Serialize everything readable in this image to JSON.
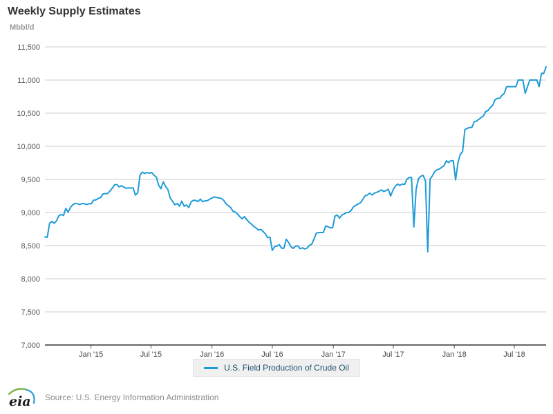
{
  "header": {
    "title": "Weekly Supply Estimates",
    "unit": "Mbbl/d"
  },
  "legend": {
    "label": "U.S. Field Production of Crude Oil"
  },
  "footer": {
    "logo_text": "eia",
    "source": "Source: U.S. Energy Information Administration"
  },
  "chart_data": {
    "type": "line",
    "title": "Weekly Supply Estimates",
    "ylabel": "Mbbl/d",
    "xlabel": "",
    "grid": true,
    "legend_position": "bottom",
    "series_name": "U.S. Field Production of Crude Oil",
    "frequency": "weekly",
    "x_start": "2014-08-15",
    "x_end": "2018-10-05",
    "ylim": [
      7000,
      11500
    ],
    "y_tick_step": 500,
    "y_ticks": [
      {
        "label": "11,500",
        "value": 11500
      },
      {
        "label": "11,000",
        "value": 11000
      },
      {
        "label": "10,500",
        "value": 10500
      },
      {
        "label": "10,000",
        "value": 10000
      },
      {
        "label": "9,500",
        "value": 9500
      },
      {
        "label": "9,000",
        "value": 9000
      },
      {
        "label": "8,500",
        "value": 8500
      },
      {
        "label": "8,000",
        "value": 8000
      },
      {
        "label": "7,500",
        "value": 7500
      },
      {
        "label": "7,000",
        "value": 7000
      }
    ],
    "x_ticks": [
      {
        "label": "Jan '15",
        "week": 19.86
      },
      {
        "label": "Jul '15",
        "week": 45.71
      },
      {
        "label": "Jan '16",
        "week": 72.0
      },
      {
        "label": "Jul '16",
        "week": 98.0
      },
      {
        "label": "Jan '17",
        "week": 124.29
      },
      {
        "label": "Jul '17",
        "week": 150.14
      },
      {
        "label": "Jan '18",
        "week": 176.43
      },
      {
        "label": "Jul '18",
        "week": 202.29
      }
    ],
    "colors": {
      "line": "#1f9bd8",
      "grid": "#cccccc",
      "axis": "#333333",
      "y_tick_label": "#555555",
      "x_tick_label": "#444444",
      "legend_text": "#1d4f6e",
      "logo_green": "#7ab648",
      "logo_blue": "#3aa5d6"
    },
    "values": [
      8631,
      8625,
      8838,
      8867,
      8837,
      8875,
      8951,
      8970,
      8956,
      9063,
      9004,
      9077,
      9118,
      9137,
      9132,
      9121,
      9135,
      9132,
      9121,
      9132,
      9132,
      9186,
      9192,
      9213,
      9226,
      9280,
      9285,
      9286,
      9324,
      9366,
      9419,
      9422,
      9386,
      9404,
      9384,
      9366,
      9373,
      9369,
      9374,
      9262,
      9300,
      9566,
      9610,
      9590,
      9604,
      9595,
      9604,
      9562,
      9538,
      9413,
      9358,
      9465,
      9395,
      9348,
      9218,
      9170,
      9117,
      9136,
      9096,
      9172,
      9096,
      9112,
      9075,
      9160,
      9185,
      9182,
      9165,
      9202,
      9164,
      9176,
      9179,
      9202,
      9219,
      9235,
      9226,
      9221,
      9214,
      9186,
      9135,
      9102,
      9077,
      9022,
      9008,
      8977,
      8938,
      8904,
      8939,
      8892,
      8853,
      8825,
      8791,
      8767,
      8735,
      8745,
      8716,
      8677,
      8622,
      8627,
      8428,
      8485,
      8494,
      8515,
      8460,
      8460,
      8597,
      8548,
      8488,
      8458,
      8493,
      8497,
      8453,
      8467,
      8450,
      8464,
      8504,
      8522,
      8604,
      8690,
      8697,
      8699,
      8697,
      8796,
      8786,
      8770,
      8770,
      8946,
      8961,
      8915,
      8961,
      8978,
      9000,
      9001,
      9032,
      9088,
      9109,
      9129,
      9147,
      9199,
      9252,
      9265,
      9293,
      9265,
      9293,
      9305,
      9320,
      9342,
      9318,
      9330,
      9350,
      9250,
      9338,
      9397,
      9429,
      9410,
      9430,
      9423,
      9502,
      9528,
      9530,
      8781,
      9353,
      9510,
      9547,
      9561,
      9480,
      8406,
      9507,
      9553,
      9620,
      9645,
      9658,
      9682,
      9707,
      9780,
      9754,
      9782,
      9782,
      9492,
      9750,
      9878,
      9919,
      10251,
      10271,
      10283,
      10283,
      10369,
      10381,
      10407,
      10433,
      10460,
      10525,
      10540,
      10586,
      10619,
      10703,
      10723,
      10725,
      10769,
      10800,
      10900,
      10900,
      10900,
      10900,
      10900,
      11000,
      11000,
      11000,
      10800,
      10900,
      11000,
      11000,
      11000,
      11000,
      10900,
      11100,
      11100,
      11200
    ]
  }
}
